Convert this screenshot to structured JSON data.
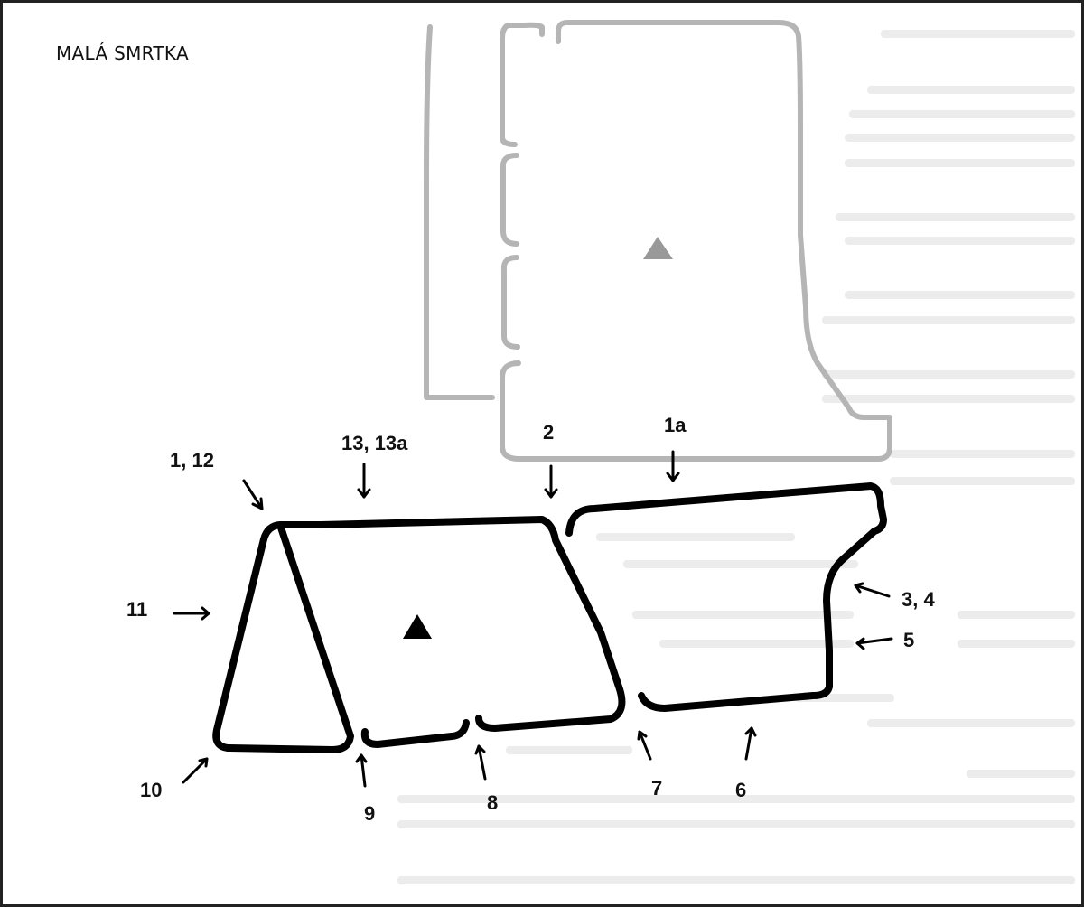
{
  "diagram": {
    "title": "MALÁ SMRTKA",
    "labels": {
      "l_1_12": "1, 12",
      "l_13_13a": "13, 13a",
      "l_2": "2",
      "l_1a": "1a",
      "l_3_4": "3, 4",
      "l_5": "5",
      "l_6": "6",
      "l_7": "7",
      "l_8": "8",
      "l_9": "9",
      "l_10": "10",
      "l_11": "11"
    },
    "colors": {
      "outline": "#000000",
      "ghost_outline": "#b5b5b5",
      "ghost_marker": "#999999",
      "marker": "#000000",
      "background_text": "#e8e8e8"
    }
  }
}
